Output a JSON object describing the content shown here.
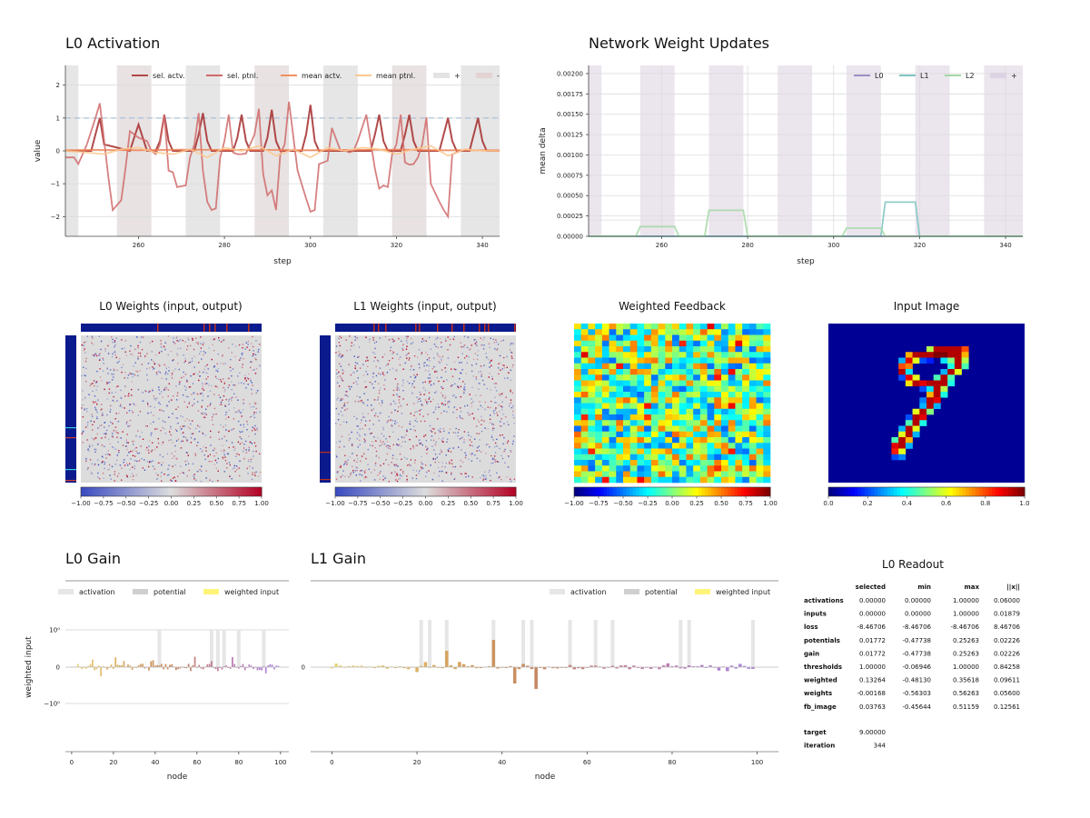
{
  "activation": {
    "title": "L0 Activation",
    "xlabel": "step",
    "ylabel": "value",
    "xticks": [
      "260",
      "280",
      "300",
      "320",
      "340"
    ],
    "yticks": [
      "2",
      "1",
      "0",
      "−1",
      "−2"
    ],
    "legend": [
      "sel. actv.",
      "sel. ptnl.",
      "mean actv.",
      "mean ptnl.",
      "+",
      "-"
    ]
  },
  "updates": {
    "title": "Network Weight Updates",
    "xlabel": "step",
    "ylabel": "mean delta",
    "xticks": [
      "260",
      "280",
      "300",
      "320",
      "340"
    ],
    "yticks": [
      "0.00200",
      "0.00175",
      "0.00150",
      "0.00125",
      "0.00100",
      "0.00075",
      "0.00050",
      "0.00025",
      "0.00000"
    ],
    "legend": [
      "L0",
      "L1",
      "L2",
      "+"
    ]
  },
  "heatmaps": {
    "l0_title": "L0 Weights (input, output)",
    "l1_title": "L1 Weights (input, output)",
    "fb_title": "Weighted Feedback",
    "img_title": "Input Image",
    "cbar_ticks": [
      "−1.00",
      "−0.75",
      "−0.50",
      "−0.25",
      "0.00",
      "0.25",
      "0.50",
      "0.75",
      "1.00"
    ],
    "img_ticks": [
      "0.0",
      "0.2",
      "0.4",
      "0.6",
      "0.8",
      "1.0"
    ]
  },
  "gain0": {
    "title": "L0 Gain",
    "xlabel": "node",
    "ylabel": "weighted input",
    "xticks": [
      "0",
      "20",
      "40",
      "60",
      "80",
      "100"
    ],
    "yticks": [
      "10⁰",
      "0",
      "−10⁰"
    ],
    "legend": [
      "activation",
      "potential",
      "weighted input"
    ]
  },
  "gain1": {
    "title": "L1 Gain",
    "xlabel": "node",
    "xticks": [
      "0",
      "20",
      "40",
      "60",
      "80",
      "100"
    ],
    "yticks": [
      "0"
    ],
    "legend": [
      "activation",
      "potential",
      "weighted input"
    ]
  },
  "readout": {
    "title": "L0 Readout",
    "headers": [
      "selected",
      "min",
      "max",
      "||x||"
    ],
    "rows": [
      {
        "name": "activations",
        "values": [
          "0.00000",
          "0.00000",
          "1.00000",
          "0.06000"
        ]
      },
      {
        "name": "inputs",
        "values": [
          "0.00000",
          "0.00000",
          "1.00000",
          "0.01879"
        ]
      },
      {
        "name": "loss",
        "values": [
          "-8.46706",
          "-8.46706",
          "-8.46706",
          "8.46706"
        ]
      },
      {
        "name": "potentials",
        "values": [
          "0.01772",
          "-0.47738",
          "0.25263",
          "0.02226"
        ]
      },
      {
        "name": "gain",
        "values": [
          "0.01772",
          "-0.47738",
          "0.25263",
          "0.02226"
        ]
      },
      {
        "name": "thresholds",
        "values": [
          "1.00000",
          "-0.06946",
          "1.00000",
          "0.84258"
        ]
      },
      {
        "name": "weighted",
        "values": [
          "0.13264",
          "-0.48130",
          "0.35618",
          "0.09611"
        ]
      },
      {
        "name": "weights",
        "values": [
          "-0.00168",
          "-0.56303",
          "0.56263",
          "0.05600"
        ]
      },
      {
        "name": "fb_image",
        "values": [
          "0.03763",
          "-0.45644",
          "0.51159",
          "0.12561"
        ]
      }
    ],
    "extra": [
      {
        "name": "target",
        "value": "9.00000"
      },
      {
        "name": "iteration",
        "value": "344"
      }
    ]
  },
  "chart_data": [
    {
      "type": "line",
      "title": "L0 Activation",
      "xlabel": "step",
      "ylabel": "value",
      "xlim": [
        243,
        344
      ],
      "ylim": [
        -2.6,
        2.6
      ],
      "shaded": {
        "plus": [
          [
            243,
            246
          ],
          [
            255,
            263
          ],
          [
            271,
            279
          ],
          [
            287,
            295
          ],
          [
            303,
            311
          ],
          [
            319,
            327
          ],
          [
            335,
            344
          ]
        ]
      },
      "series": [
        {
          "name": "sel. actv.",
          "color": "#a52a2a",
          "x": [
            243,
            249,
            250,
            251,
            252,
            258,
            259,
            260,
            262,
            264,
            265,
            266,
            267,
            268,
            273,
            274,
            275,
            276,
            277,
            282,
            283,
            284,
            285,
            286,
            289,
            290,
            291,
            292,
            293,
            298,
            299,
            300,
            301,
            302,
            314,
            315,
            316,
            317,
            318,
            321,
            322,
            323,
            324,
            325,
            330,
            331,
            332,
            333,
            334,
            337,
            338,
            339,
            340,
            341,
            344
          ],
          "y": [
            0,
            0,
            0.5,
            1,
            0.2,
            0,
            0.4,
            0.8,
            0,
            0,
            0.3,
            1.1,
            0.3,
            0,
            0,
            0.5,
            1.15,
            0.3,
            0,
            0,
            0.4,
            1.1,
            0.3,
            0,
            0,
            0.4,
            1.25,
            0.3,
            0,
            0,
            0.5,
            1.4,
            0.3,
            0,
            0,
            0.5,
            1.1,
            0.3,
            0,
            0,
            0.5,
            1.1,
            0.3,
            0,
            0,
            0.5,
            1.0,
            0.3,
            0,
            0,
            0.5,
            1.0,
            0.3,
            0,
            0
          ]
        },
        {
          "name": "sel. ptnl.",
          "color": "#d06a6a",
          "x": [
            243,
            245,
            246,
            248,
            250,
            251,
            253,
            254,
            256,
            257,
            258,
            260,
            262,
            263,
            264,
            265,
            266,
            267,
            268,
            269,
            271,
            272,
            273,
            274,
            275,
            276,
            277,
            278,
            279,
            280,
            281,
            282,
            283,
            284,
            285,
            286,
            287,
            288,
            289,
            290,
            291,
            292,
            293,
            294,
            295,
            297,
            299,
            300,
            301,
            302,
            303,
            304,
            305,
            307,
            308,
            309,
            310,
            311,
            313,
            315,
            316,
            317,
            318,
            319,
            320,
            321,
            322,
            323,
            324,
            325,
            326,
            327,
            328,
            330,
            331,
            332,
            333,
            335
          ],
          "y": [
            -0.2,
            -0.2,
            -0.4,
            0.2,
            1.0,
            1.45,
            -0.8,
            -1.8,
            -1.5,
            -0.5,
            0.6,
            0.4,
            0.3,
            0.0,
            -0.1,
            0.2,
            1.1,
            -0.6,
            -0.65,
            -1.1,
            -1.05,
            -0.2,
            0.2,
            1.15,
            -0.6,
            -1.55,
            -1.8,
            -1.75,
            -0.2,
            0.3,
            1.1,
            -0.05,
            -0.1,
            -0.1,
            -0.08,
            0.2,
            0.5,
            1.28,
            -0.7,
            -1.35,
            -1.2,
            -1.8,
            -0.1,
            0.2,
            1.5,
            -0.6,
            -1.45,
            -1.85,
            -1.8,
            -0.4,
            -0.35,
            -0.3,
            0.7,
            0.0,
            0.02,
            -0.05,
            0.0,
            0.3,
            1.1,
            -0.55,
            -1.15,
            -1.05,
            -1.1,
            -0.1,
            0.2,
            1.1,
            -0.35,
            -0.42,
            -0.4,
            -0.2,
            0.2,
            1.02,
            -1.0,
            -1.55,
            -1.8,
            -2.0,
            -0.1,
            0.0
          ]
        },
        {
          "name": "mean actv.",
          "color": "#f08050",
          "x": [
            243,
            250,
            260,
            270,
            280,
            290,
            300,
            310,
            320,
            330,
            344
          ],
          "y": [
            0.02,
            0.03,
            0.02,
            0.04,
            0.03,
            0.03,
            0.02,
            0.03,
            0.04,
            0.02,
            0.02
          ]
        },
        {
          "name": "mean ptnl.",
          "color": "#fcc890",
          "x": [
            243,
            248,
            252,
            256,
            260,
            264,
            268,
            272,
            276,
            280,
            284,
            288,
            292,
            296,
            300,
            304,
            308,
            312,
            316,
            320,
            324,
            328,
            332,
            336,
            340,
            344
          ],
          "y": [
            0.0,
            -0.05,
            -0.1,
            0.05,
            0.1,
            -0.05,
            -0.1,
            0.05,
            -0.2,
            0.1,
            0.0,
            0.15,
            -0.15,
            0.05,
            -0.2,
            0.1,
            0.0,
            0.1,
            0.05,
            -0.1,
            0.05,
            0.15,
            -0.15,
            0.05,
            0.0,
            0.0
          ]
        }
      ]
    },
    {
      "type": "line",
      "title": "Network Weight Updates",
      "xlabel": "step",
      "ylabel": "mean delta",
      "xlim": [
        243,
        344
      ],
      "ylim": [
        0,
        0.0021
      ],
      "shaded": {
        "plus": [
          [
            243,
            246
          ],
          [
            255,
            263
          ],
          [
            271,
            279
          ],
          [
            287,
            295
          ],
          [
            303,
            311
          ],
          [
            319,
            327
          ],
          [
            335,
            344
          ]
        ]
      },
      "series": [
        {
          "name": "L0",
          "color": "#9b8fc9",
          "x": [
            243,
            344
          ],
          "y": [
            0,
            0
          ]
        },
        {
          "name": "L1",
          "color": "#7fc3c0",
          "x": [
            243,
            310,
            311,
            312,
            319,
            320,
            344
          ],
          "y": [
            0,
            0,
            0,
            0.00042,
            0.00042,
            0,
            0
          ]
        },
        {
          "name": "L2",
          "color": "#a3d9a5",
          "x": [
            243,
            254,
            255,
            263,
            264,
            270,
            271,
            279,
            280,
            302,
            303,
            311,
            312,
            344
          ],
          "y": [
            0,
            0,
            0.00012,
            0.00012,
            0,
            0,
            0.00032,
            0.00032,
            0,
            0,
            0.0001,
            0.0001,
            0,
            0
          ]
        }
      ]
    },
    {
      "type": "heatmap",
      "title": "L0 Weights (input, output)",
      "colormap": "coolwarm",
      "vmin": -1,
      "vmax": 1
    },
    {
      "type": "heatmap",
      "title": "L1 Weights (input, output)",
      "colormap": "coolwarm",
      "vmin": -1,
      "vmax": 1
    },
    {
      "type": "heatmap",
      "title": "Weighted Feedback",
      "colormap": "jet",
      "vmin": -1,
      "vmax": 1
    },
    {
      "type": "heatmap",
      "title": "Input Image",
      "colormap": "jet",
      "vmin": 0,
      "vmax": 1
    },
    {
      "type": "bar",
      "title": "L0 Gain",
      "xlabel": "node",
      "ylabel": "weighted input",
      "xlim": [
        -3,
        104
      ],
      "yscale": "symlog",
      "highlight_nodes": [
        42,
        67,
        70,
        73,
        80,
        92
      ]
    },
    {
      "type": "bar",
      "title": "L1 Gain",
      "xlabel": "node",
      "xlim": [
        -5,
        105
      ],
      "highlight_nodes": [
        21,
        23,
        27,
        38,
        45,
        47,
        56,
        62,
        66,
        82,
        84,
        99
      ],
      "peak_values": {
        "38": 0.75,
        "27": 0.45,
        "48": -0.6,
        "43": -0.45
      }
    }
  ]
}
